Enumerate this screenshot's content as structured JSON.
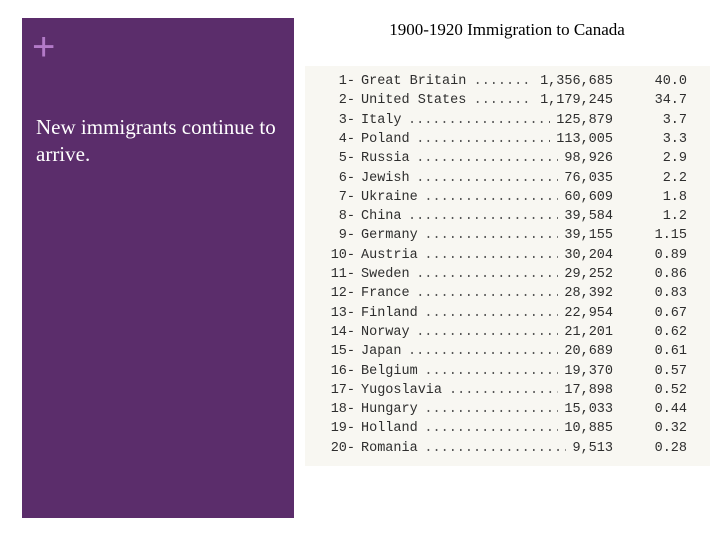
{
  "sidebar": {
    "plus_icon": "+",
    "text": "New immigrants continue to arrive."
  },
  "title": "1900-1920 Immigration to Canada",
  "rows": [
    {
      "num": "1-",
      "country": "Great Britain",
      "count": "1,356,685",
      "pct": "40.0"
    },
    {
      "num": "2-",
      "country": "United States",
      "count": "1,179,245",
      "pct": "34.7"
    },
    {
      "num": "3-",
      "country": "Italy",
      "count": "125,879",
      "pct": "3.7"
    },
    {
      "num": "4-",
      "country": "Poland",
      "count": "113,005",
      "pct": "3.3"
    },
    {
      "num": "5-",
      "country": "Russia",
      "count": "98,926",
      "pct": "2.9"
    },
    {
      "num": "6-",
      "country": "Jewish",
      "count": "76,035",
      "pct": "2.2"
    },
    {
      "num": "7-",
      "country": "Ukraine",
      "count": "60,609",
      "pct": "1.8"
    },
    {
      "num": "8-",
      "country": "China",
      "count": "39,584",
      "pct": "1.2"
    },
    {
      "num": "9-",
      "country": "Germany",
      "count": "39,155",
      "pct": "1.15"
    },
    {
      "num": "10-",
      "country": "Austria",
      "count": "30,204",
      "pct": "0.89"
    },
    {
      "num": "11-",
      "country": "Sweden",
      "count": "29,252",
      "pct": "0.86"
    },
    {
      "num": "12-",
      "country": "France",
      "count": "28,392",
      "pct": "0.83"
    },
    {
      "num": "13-",
      "country": "Finland",
      "count": "22,954",
      "pct": "0.67"
    },
    {
      "num": "14-",
      "country": "Norway",
      "count": "21,201",
      "pct": "0.62"
    },
    {
      "num": "15-",
      "country": "Japan",
      "count": "20,689",
      "pct": "0.61"
    },
    {
      "num": "16-",
      "country": "Belgium",
      "count": "19,370",
      "pct": "0.57"
    },
    {
      "num": "17-",
      "country": "Yugoslavia",
      "count": "17,898",
      "pct": "0.52"
    },
    {
      "num": "18-",
      "country": "Hungary",
      "count": "15,033",
      "pct": "0.44"
    },
    {
      "num": "19-",
      "country": "Holland",
      "count": "10,885",
      "pct": "0.32"
    },
    {
      "num": "20-",
      "country": "Romania",
      "count": "9,513",
      "pct": "0.28"
    }
  ]
}
